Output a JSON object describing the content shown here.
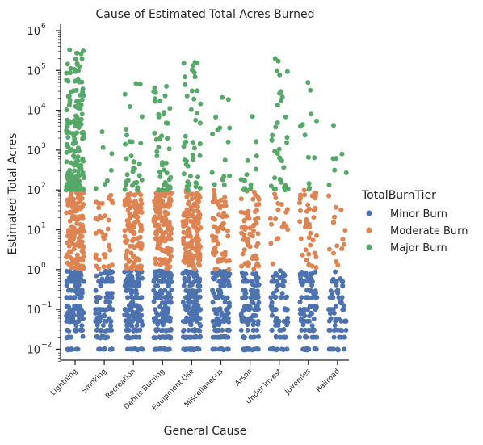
{
  "chart_data": {
    "type": "scatter",
    "title": "Cause of Estimated Total Acres Burned",
    "xlabel": "General Cause",
    "ylabel": "Estimated Total Acres",
    "yscale": "log",
    "ylim": [
      0.005,
      1000000
    ],
    "y_ticks": [
      {
        "value": 0.01,
        "base": "10",
        "exp": "−2"
      },
      {
        "value": 0.1,
        "base": "10",
        "exp": "−1"
      },
      {
        "value": 1,
        "base": "10",
        "exp": "0"
      },
      {
        "value": 10,
        "base": "10",
        "exp": "1"
      },
      {
        "value": 100,
        "base": "10",
        "exp": "2"
      },
      {
        "value": 1000,
        "base": "10",
        "exp": "3"
      },
      {
        "value": 10000,
        "base": "10",
        "exp": "4"
      },
      {
        "value": 100000,
        "base": "10",
        "exp": "5"
      },
      {
        "value": 1000000,
        "base": "10",
        "exp": "6"
      }
    ],
    "categories": [
      "Lightning",
      "Smoking",
      "Recreation",
      "Debris Burning",
      "Equipment Use",
      "Miscellaneous",
      "Arson",
      "Under Invest",
      "Juveniles",
      "Railroad"
    ],
    "legend": {
      "title": "TotalBurnTier",
      "position": "right"
    },
    "series": [
      {
        "name": "Minor Burn",
        "color": "#4c72b0",
        "range": [
          0.01,
          0.9
        ],
        "density": [
          120,
          60,
          100,
          120,
          115,
          90,
          75,
          45,
          65,
          35
        ]
      },
      {
        "name": "Moderate Burn",
        "color": "#dd8452",
        "range": [
          1,
          99
        ],
        "density": [
          140,
          40,
          120,
          150,
          140,
          60,
          60,
          18,
          40,
          15
        ]
      },
      {
        "name": "Major Burn",
        "color": "#55a868",
        "max_by_category": [
          500000,
          3000,
          47000,
          40000,
          160000,
          21000,
          7000,
          200000,
          50000,
          4200
        ],
        "density": [
          160,
          4,
          30,
          40,
          45,
          15,
          12,
          35,
          10,
          5
        ],
        "outliers": [
          {
            "category": "Smoking",
            "value": 2900
          },
          {
            "category": "Smoking",
            "value": 170
          },
          {
            "category": "Smoking",
            "value": 140
          },
          {
            "category": "Recreation",
            "value": 47000
          },
          {
            "category": "Debris Burning",
            "value": 40000
          },
          {
            "category": "Debris Burning",
            "value": 8000
          },
          {
            "category": "Equipment Use",
            "value": 160000
          },
          {
            "category": "Miscellaneous",
            "value": 21000
          },
          {
            "category": "Arson",
            "value": 7000
          },
          {
            "category": "Under Invest",
            "value": 200000
          },
          {
            "category": "Juveniles",
            "value": 50000
          },
          {
            "category": "Juveniles",
            "value": 32000
          },
          {
            "category": "Railroad",
            "value": 4200
          },
          {
            "category": "Railroad",
            "value": 800
          }
        ]
      }
    ]
  }
}
